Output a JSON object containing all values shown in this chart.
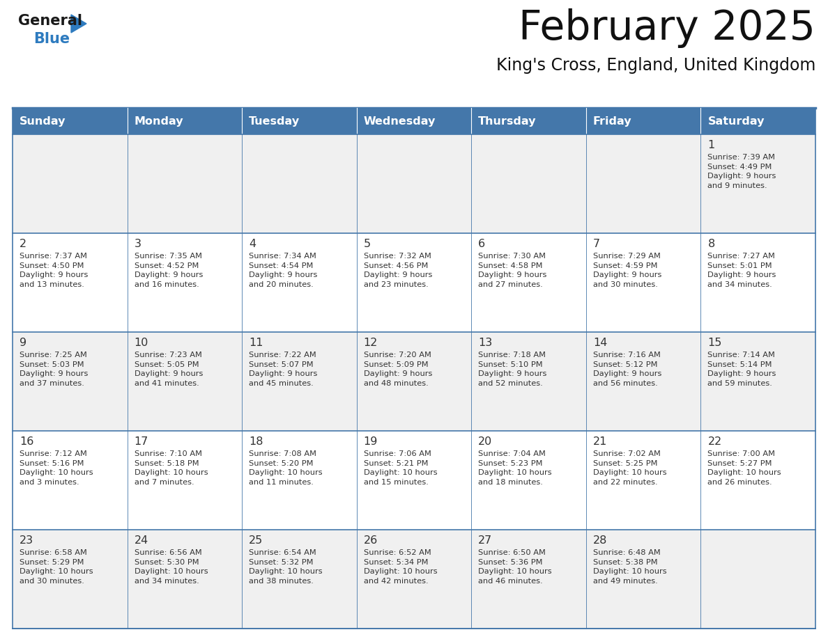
{
  "title": "February 2025",
  "subtitle": "King's Cross, England, United Kingdom",
  "days_of_week": [
    "Sunday",
    "Monday",
    "Tuesday",
    "Wednesday",
    "Thursday",
    "Friday",
    "Saturday"
  ],
  "header_bg": "#4477aa",
  "header_text": "#ffffff",
  "row_bg_odd": "#f0f0f0",
  "row_bg_even": "#ffffff",
  "cell_border": "#4477aa",
  "date_color": "#333333",
  "text_color": "#333333",
  "logo_general_color": "#1a1a1a",
  "logo_blue_color": "#2e7bbf",
  "calendar": [
    [
      null,
      null,
      null,
      null,
      null,
      null,
      {
        "day": 1,
        "sunrise": "7:39 AM",
        "sunset": "4:49 PM",
        "daylight": "9 hours\nand 9 minutes."
      }
    ],
    [
      {
        "day": 2,
        "sunrise": "7:37 AM",
        "sunset": "4:50 PM",
        "daylight": "9 hours\nand 13 minutes."
      },
      {
        "day": 3,
        "sunrise": "7:35 AM",
        "sunset": "4:52 PM",
        "daylight": "9 hours\nand 16 minutes."
      },
      {
        "day": 4,
        "sunrise": "7:34 AM",
        "sunset": "4:54 PM",
        "daylight": "9 hours\nand 20 minutes."
      },
      {
        "day": 5,
        "sunrise": "7:32 AM",
        "sunset": "4:56 PM",
        "daylight": "9 hours\nand 23 minutes."
      },
      {
        "day": 6,
        "sunrise": "7:30 AM",
        "sunset": "4:58 PM",
        "daylight": "9 hours\nand 27 minutes."
      },
      {
        "day": 7,
        "sunrise": "7:29 AM",
        "sunset": "4:59 PM",
        "daylight": "9 hours\nand 30 minutes."
      },
      {
        "day": 8,
        "sunrise": "7:27 AM",
        "sunset": "5:01 PM",
        "daylight": "9 hours\nand 34 minutes."
      }
    ],
    [
      {
        "day": 9,
        "sunrise": "7:25 AM",
        "sunset": "5:03 PM",
        "daylight": "9 hours\nand 37 minutes."
      },
      {
        "day": 10,
        "sunrise": "7:23 AM",
        "sunset": "5:05 PM",
        "daylight": "9 hours\nand 41 minutes."
      },
      {
        "day": 11,
        "sunrise": "7:22 AM",
        "sunset": "5:07 PM",
        "daylight": "9 hours\nand 45 minutes."
      },
      {
        "day": 12,
        "sunrise": "7:20 AM",
        "sunset": "5:09 PM",
        "daylight": "9 hours\nand 48 minutes."
      },
      {
        "day": 13,
        "sunrise": "7:18 AM",
        "sunset": "5:10 PM",
        "daylight": "9 hours\nand 52 minutes."
      },
      {
        "day": 14,
        "sunrise": "7:16 AM",
        "sunset": "5:12 PM",
        "daylight": "9 hours\nand 56 minutes."
      },
      {
        "day": 15,
        "sunrise": "7:14 AM",
        "sunset": "5:14 PM",
        "daylight": "9 hours\nand 59 minutes."
      }
    ],
    [
      {
        "day": 16,
        "sunrise": "7:12 AM",
        "sunset": "5:16 PM",
        "daylight": "10 hours\nand 3 minutes."
      },
      {
        "day": 17,
        "sunrise": "7:10 AM",
        "sunset": "5:18 PM",
        "daylight": "10 hours\nand 7 minutes."
      },
      {
        "day": 18,
        "sunrise": "7:08 AM",
        "sunset": "5:20 PM",
        "daylight": "10 hours\nand 11 minutes."
      },
      {
        "day": 19,
        "sunrise": "7:06 AM",
        "sunset": "5:21 PM",
        "daylight": "10 hours\nand 15 minutes."
      },
      {
        "day": 20,
        "sunrise": "7:04 AM",
        "sunset": "5:23 PM",
        "daylight": "10 hours\nand 18 minutes."
      },
      {
        "day": 21,
        "sunrise": "7:02 AM",
        "sunset": "5:25 PM",
        "daylight": "10 hours\nand 22 minutes."
      },
      {
        "day": 22,
        "sunrise": "7:00 AM",
        "sunset": "5:27 PM",
        "daylight": "10 hours\nand 26 minutes."
      }
    ],
    [
      {
        "day": 23,
        "sunrise": "6:58 AM",
        "sunset": "5:29 PM",
        "daylight": "10 hours\nand 30 minutes."
      },
      {
        "day": 24,
        "sunrise": "6:56 AM",
        "sunset": "5:30 PM",
        "daylight": "10 hours\nand 34 minutes."
      },
      {
        "day": 25,
        "sunrise": "6:54 AM",
        "sunset": "5:32 PM",
        "daylight": "10 hours\nand 38 minutes."
      },
      {
        "day": 26,
        "sunrise": "6:52 AM",
        "sunset": "5:34 PM",
        "daylight": "10 hours\nand 42 minutes."
      },
      {
        "day": 27,
        "sunrise": "6:50 AM",
        "sunset": "5:36 PM",
        "daylight": "10 hours\nand 46 minutes."
      },
      {
        "day": 28,
        "sunrise": "6:48 AM",
        "sunset": "5:38 PM",
        "daylight": "10 hours\nand 49 minutes."
      },
      null
    ]
  ]
}
